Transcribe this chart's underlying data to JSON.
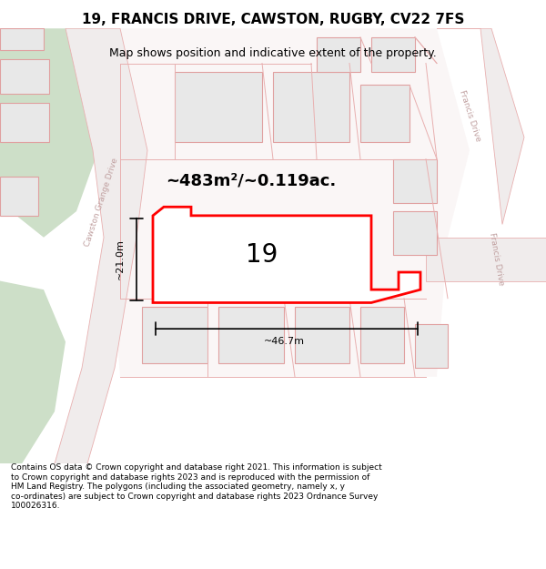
{
  "title_line1": "19, FRANCIS DRIVE, CAWSTON, RUGBY, CV22 7FS",
  "title_line2": "Map shows position and indicative extent of the property.",
  "area_label": "~483m²/~0.119ac.",
  "number_label": "19",
  "dim_width": "~46.7m",
  "dim_height": "~21.0m",
  "street_label_left": "Cawston Grange Drive",
  "street_label_right1": "Francis Drive",
  "street_label_right2": "Francis Drive",
  "footer_lines": [
    "Contains OS data © Crown copyright and database right 2021. This information is subject",
    "to Crown copyright and database rights 2023 and is reproduced with the permission of",
    "HM Land Registry. The polygons (including the associated geometry, namely x, y",
    "co-ordinates) are subject to Crown copyright and database rights 2023 Ordnance Survey",
    "100026316."
  ],
  "bg_color": "#ffffff",
  "map_bg": "#f8f4f4",
  "road_stroke": "#e8b0b0",
  "green_color": "#cddfc8",
  "plot_fill": "#ffffff",
  "plot_stroke": "#ff0000",
  "building_fill": "#e8e8e8",
  "building_stroke": "#e0a0a0",
  "street_text_color": "#c0a0a0",
  "title_color": "#000000",
  "footer_color": "#000000"
}
